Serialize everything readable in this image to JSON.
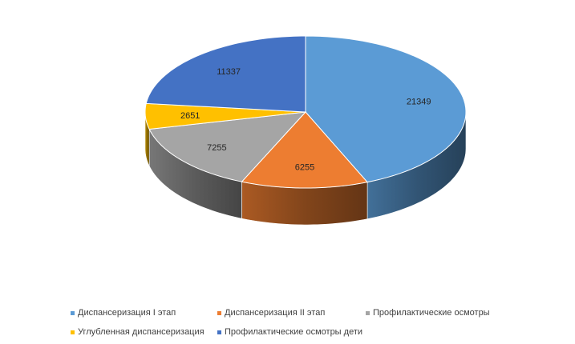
{
  "chart_data": {
    "type": "pie",
    "style": "3d",
    "title": "",
    "categories": [
      "Диспансеризация I этап",
      "Диспансеризация II этап",
      "Профилактические осмотры",
      "Углубленная диспансеризация",
      "Профилактические осмотры дети"
    ],
    "values": [
      21349,
      6255,
      7255,
      2651,
      11337
    ],
    "data_labels": [
      "21349",
      "6255",
      "7255",
      "2651",
      "11337"
    ],
    "colors": [
      "#5b9bd5",
      "#ed7d31",
      "#a5a5a5",
      "#ffc000",
      "#4472c4"
    ],
    "legend_position": "bottom"
  }
}
